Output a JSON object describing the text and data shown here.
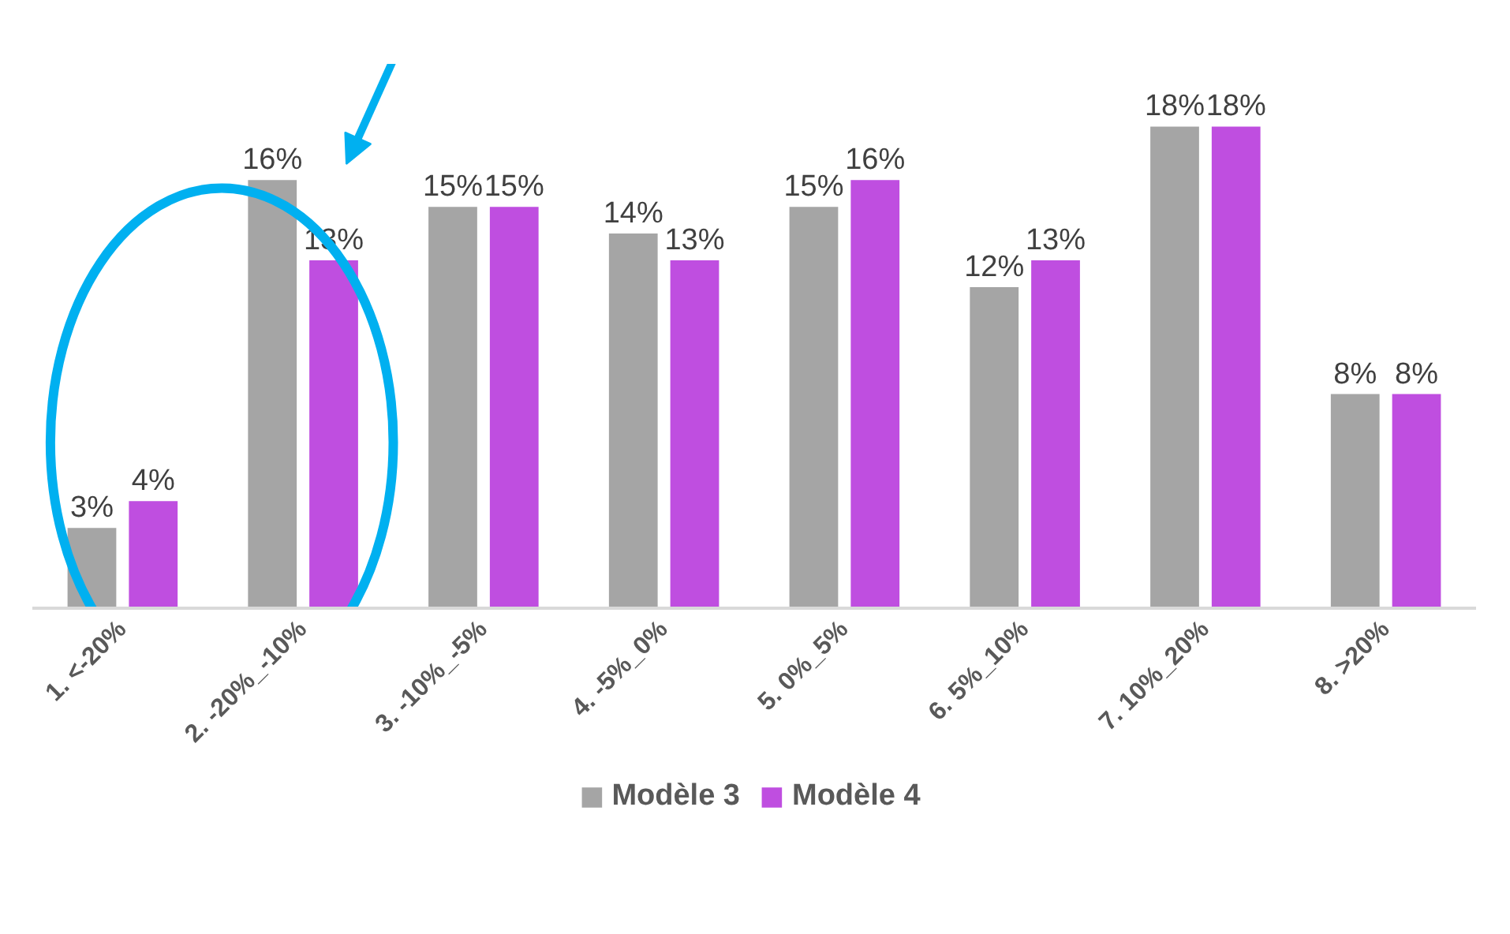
{
  "chart_data": {
    "type": "bar",
    "categories": [
      "1. <-20%",
      "2. -20%_-10%",
      "3. -10%_-5%",
      "4. -5%_0%",
      "5. 0%_5%",
      "6. 5%_10%",
      "7. 10%_20%",
      "8. >20%"
    ],
    "series": [
      {
        "name": "Modèle 3",
        "color": "#a5a5a5",
        "values": [
          3,
          16,
          15,
          14,
          15,
          12,
          18,
          8
        ],
        "value_labels": [
          "3%",
          "16%",
          "15%",
          "14%",
          "15%",
          "12%",
          "18%",
          "8%"
        ]
      },
      {
        "name": "Modèle 4",
        "color": "#bf4ee0",
        "values": [
          4,
          13,
          15,
          13,
          16,
          13,
          18,
          8
        ],
        "value_labels": [
          "4%",
          "13%",
          "15%",
          "13%",
          "16%",
          "13%",
          "18%",
          "8%"
        ]
      }
    ],
    "legend": "bottom"
  }
}
